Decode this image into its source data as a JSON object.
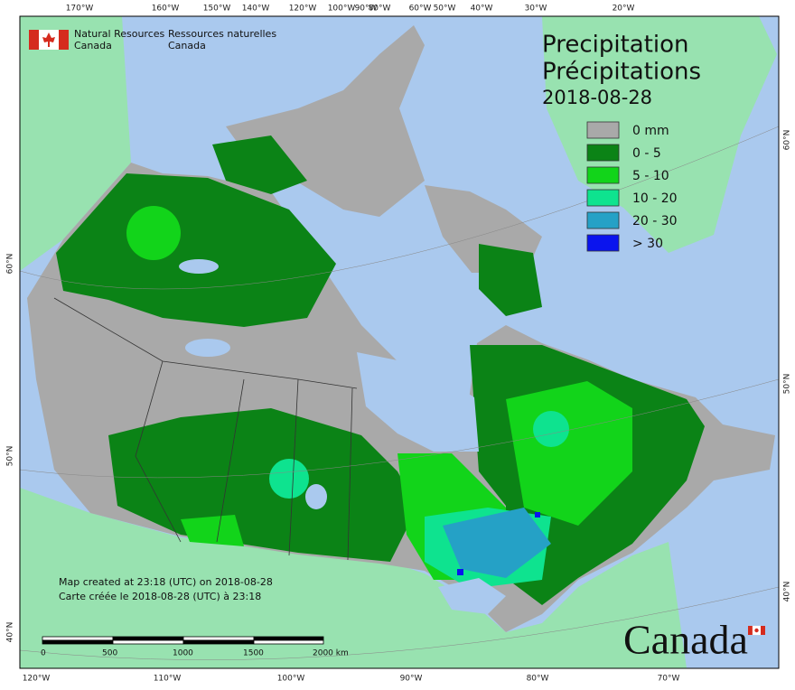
{
  "header": {
    "en_line1": "Natural Resources",
    "en_line2": "Canada",
    "fr_line1": "Ressources naturelles",
    "fr_line2": "Canada"
  },
  "title": {
    "en": "Precipitation",
    "fr": "Précipitations",
    "date": "2018-08-28"
  },
  "legend": [
    {
      "label": "0 mm",
      "color": "#a9a9a9"
    },
    {
      "label": "0 - 5",
      "color": "#0b8316"
    },
    {
      "label": "5 - 10",
      "color": "#12d41a"
    },
    {
      "label": "10 - 20",
      "color": "#0ee38f"
    },
    {
      "label": "20 - 30",
      "color": "#25a1c6"
    },
    {
      "label": "> 30",
      "color": "#0a14ee"
    }
  ],
  "notes": [
    "Map created at 23:18 (UTC) on 2018-08-28",
    "Carte créée le 2018-08-28 (UTC) à 23:18"
  ],
  "scale_bar": [
    "0",
    "500",
    "1000",
    "1500",
    "2000  km"
  ],
  "graticule": {
    "top": [
      "170°W",
      "160°W",
      "150°W",
      "140°W",
      "120°W",
      "100°W",
      "90°W",
      "80°W",
      "60°W",
      "50°W",
      "40°W",
      "30°W",
      "20°W"
    ],
    "bottom": [
      "120°W",
      "110°W",
      "100°W",
      "90°W",
      "80°W",
      "70°W"
    ],
    "left": [
      "60°N",
      "50°N",
      "40°N"
    ],
    "right": [
      "60°N",
      "50°N",
      "40°N"
    ]
  },
  "wordmark": "Canada"
}
